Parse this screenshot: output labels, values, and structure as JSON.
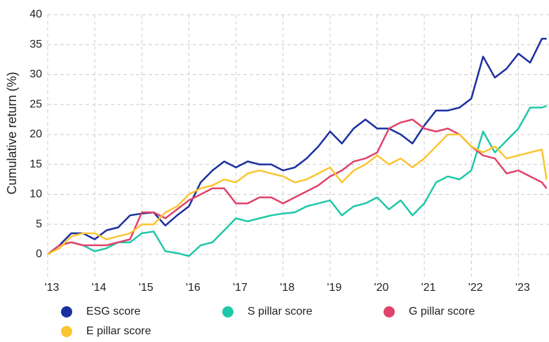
{
  "chart_data": {
    "type": "line",
    "y_label": "Cumulative return (%)",
    "x": [
      2013,
      2013.25,
      2013.5,
      2013.75,
      2014,
      2014.25,
      2014.5,
      2014.75,
      2015,
      2015.25,
      2015.5,
      2015.75,
      2016,
      2016.25,
      2016.5,
      2016.75,
      2017,
      2017.25,
      2017.5,
      2017.75,
      2018,
      2018.25,
      2018.5,
      2018.75,
      2019,
      2019.25,
      2019.5,
      2019.75,
      2020,
      2020.25,
      2020.5,
      2020.75,
      2021,
      2021.25,
      2021.5,
      2021.75,
      2022,
      2022.25,
      2022.5,
      2022.75,
      2023,
      2023.25,
      2023.5,
      2023.6
    ],
    "series": [
      {
        "name": "ESG score",
        "color": "#1a2fa0",
        "values": [
          0,
          1.5,
          3.5,
          3.5,
          2.5,
          4,
          4.5,
          6.5,
          6.8,
          7,
          4.8,
          6.5,
          8,
          12,
          14,
          15.5,
          14.5,
          15.5,
          15,
          15,
          14,
          14.5,
          16,
          18,
          20.5,
          18.5,
          21,
          22.5,
          21,
          21,
          20,
          18.5,
          21.5,
          24,
          24,
          24.5,
          26,
          33,
          29.5,
          31,
          33.5,
          32,
          36,
          36
        ]
      },
      {
        "name": "S pillar score",
        "color": "#1ec8a8",
        "values": [
          0,
          1.5,
          2,
          1.5,
          0.5,
          1,
          2,
          2,
          3.5,
          3.8,
          0.5,
          0.2,
          -0.3,
          1.5,
          2,
          4,
          6,
          5.5,
          6,
          6.5,
          6.8,
          7,
          8,
          8.5,
          9,
          6.5,
          8,
          8.5,
          9.5,
          7.5,
          9,
          6.5,
          8.5,
          12,
          13,
          12.5,
          14,
          20.5,
          17,
          19,
          21,
          24.5,
          24.5,
          24.8
        ]
      },
      {
        "name": "G pillar score",
        "color": "#e0426a",
        "values": [
          0,
          1.5,
          2,
          1.5,
          1.5,
          1.5,
          2,
          2.5,
          7,
          7,
          6,
          7.5,
          9,
          10,
          11,
          11,
          8.5,
          8.5,
          9.5,
          9.5,
          8.5,
          9.5,
          10.5,
          11.5,
          13,
          14,
          15.5,
          16,
          17,
          21,
          22,
          22.5,
          21,
          20.5,
          21,
          20,
          18,
          16.5,
          16,
          13.5,
          14,
          13,
          12,
          11
        ]
      },
      {
        "name": "E pillar score",
        "color": "#fbc531",
        "values": [
          0,
          1,
          3,
          3.5,
          3.5,
          2.5,
          3,
          3.5,
          5,
          5,
          7,
          8,
          10,
          11,
          11.5,
          12.5,
          12,
          13.5,
          14,
          13.5,
          13,
          12,
          12.5,
          13.5,
          14.5,
          12,
          14,
          15,
          16.5,
          15,
          16,
          14.5,
          16,
          18,
          20,
          20,
          18,
          17,
          18,
          16,
          16.5,
          17,
          17.5,
          12.5
        ]
      }
    ],
    "xlim": [
      2013,
      2023.65
    ],
    "xticks": [
      {
        "value": 2013,
        "label": "'13"
      },
      {
        "value": 2014,
        "label": "'14"
      },
      {
        "value": 2015,
        "label": "'15"
      },
      {
        "value": 2016,
        "label": "'16"
      },
      {
        "value": 2017,
        "label": "'17"
      },
      {
        "value": 2018,
        "label": "'18"
      },
      {
        "value": 2019,
        "label": "'19"
      },
      {
        "value": 2020,
        "label": "'20"
      },
      {
        "value": 2021,
        "label": "'21"
      },
      {
        "value": 2022,
        "label": "'22"
      },
      {
        "value": 2023,
        "label": "'23"
      }
    ],
    "ylim": [
      -4,
      40
    ],
    "yticks": [
      0,
      5,
      10,
      15,
      20,
      25,
      30,
      35,
      40
    ],
    "grid": true
  }
}
